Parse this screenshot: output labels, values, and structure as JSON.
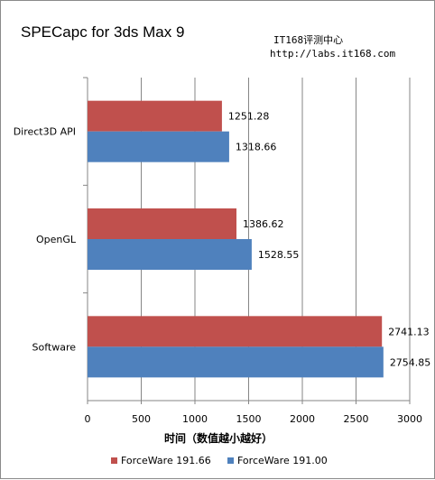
{
  "watermark": {
    "line1": "IT168评测中心",
    "line2": "http://labs.it168.com"
  },
  "colors": {
    "ForceWare 191.66": "#c0504d",
    "ForceWare 191.00": "#4f81bd",
    "grid": "#868686",
    "axis": "#868686"
  },
  "chart_data": {
    "type": "bar",
    "orientation": "horizontal",
    "title": "SPECapc for 3ds Max 9",
    "xlabel": "时间（数值越小越好）",
    "ylabel": "",
    "categories": [
      "Direct3D API",
      "OpenGL",
      "Software"
    ],
    "series": [
      {
        "name": "ForceWare 191.66",
        "values": [
          1251.28,
          1386.62,
          2741.13
        ],
        "labels": [
          "1251.28",
          "1386.62",
          "2741.13"
        ]
      },
      {
        "name": "ForceWare 191.00",
        "values": [
          1318.66,
          1528.55,
          2754.85
        ],
        "labels": [
          "1318.66",
          "1528.55",
          "2754.85"
        ]
      }
    ],
    "xlim": [
      0,
      3000
    ],
    "xticks": [
      "0",
      "500",
      "1000",
      "1500",
      "2000",
      "2500",
      "3000"
    ],
    "grid": true,
    "legend": "bottom"
  }
}
